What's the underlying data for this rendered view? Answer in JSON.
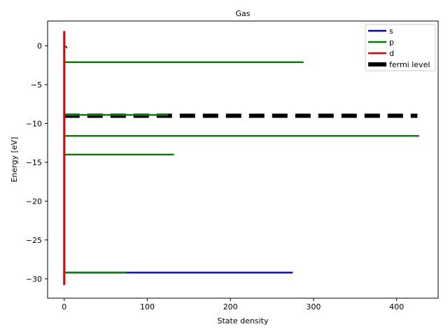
{
  "chart_data": {
    "type": "line",
    "title": "Gas",
    "xlabel": "State density",
    "ylabel": "Energy [eV]",
    "xlim": [
      -20,
      450
    ],
    "ylim": [
      -32.5,
      3.2
    ],
    "xticks": [
      0,
      100,
      200,
      300,
      400
    ],
    "yticks": [
      0,
      -5,
      -10,
      -15,
      -20,
      -25,
      -30
    ],
    "xtick_labels": [
      "0",
      "100",
      "200",
      "300",
      "400"
    ],
    "ytick_labels": [
      "0",
      "−5",
      "−10",
      "−15",
      "−20",
      "−25",
      "−30"
    ],
    "grid": false,
    "legend_position": "top-right",
    "series": [
      {
        "name": "s",
        "color": "#0000cc",
        "segments": [
          {
            "energy": -29.2,
            "x_end": 275
          }
        ]
      },
      {
        "name": "p",
        "color": "#008000",
        "segments": [
          {
            "energy": -2.1,
            "x_end": 288
          },
          {
            "energy": -8.9,
            "x_end": 125
          },
          {
            "energy": -11.6,
            "x_end": 427
          },
          {
            "energy": -14.0,
            "x_end": 132
          },
          {
            "energy": -29.2,
            "x_end": 75
          }
        ]
      },
      {
        "name": "d",
        "color": "#dd0000",
        "segments": [
          {
            "x": 0,
            "energy_range": [
              -30.8,
              1.9
            ]
          }
        ]
      },
      {
        "name": "fermi level",
        "color": "#000000",
        "style": "dashed",
        "segments": [
          {
            "energy": -9.0,
            "x_range": [
              0,
              425
            ]
          }
        ]
      }
    ]
  }
}
